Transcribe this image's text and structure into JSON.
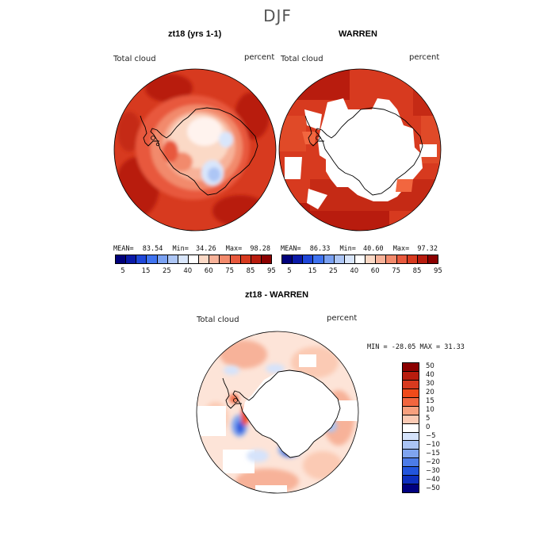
{
  "figure": {
    "season": "DJF"
  },
  "panels": {
    "model": {
      "title": "zt18 (yrs 1-1)",
      "variable": "Total cloud",
      "units": "percent",
      "stats": {
        "mean_label": "MEAN=",
        "mean": "83.54",
        "min_label": "Min=",
        "min": "34.26",
        "max_label": "Max=",
        "max": "98.28"
      }
    },
    "obs": {
      "title": "WARREN",
      "variable": "Total cloud",
      "units": "percent",
      "stats": {
        "mean_label": "MEAN=",
        "mean": "86.33",
        "min_label": "Min=",
        "min": "40.60",
        "max_label": "Max=",
        "max": "97.32"
      }
    },
    "diff": {
      "title": "zt18 - WARREN",
      "variable": "Total cloud",
      "units": "percent",
      "stats_text": "MIN = -28.05 MAX =  31.33"
    }
  },
  "colorbar_abs": {
    "tick_labels": [
      "5",
      "15",
      "25",
      "40",
      "60",
      "75",
      "85",
      "95"
    ],
    "colors": [
      "#00007a",
      "#0a1aa8",
      "#1f47d9",
      "#3f73f0",
      "#7aa1f2",
      "#adc6f5",
      "#d9e6fb",
      "#ffffff",
      "#fbd9c6",
      "#f7b299",
      "#f28a6c",
      "#e8593d",
      "#d73a1f",
      "#b81c0e",
      "#8b0000"
    ]
  },
  "colorbar_diff": {
    "value_labels": [
      "50",
      "40",
      "30",
      "20",
      "15",
      "10",
      "5",
      "0",
      "−5",
      "−10",
      "−15",
      "−20",
      "−30",
      "−40",
      "−50"
    ],
    "colors": [
      "#8b0000",
      "#b81c0e",
      "#d73a1f",
      "#f04a1a",
      "#f2663f",
      "#f7a07e",
      "#fbcab4",
      "#ffffff",
      "#d5e3fb",
      "#aac4f5",
      "#7fa4ef",
      "#4c7ce8",
      "#2255dd",
      "#0d2fbf",
      "#000080"
    ]
  },
  "palette": {
    "dark_red": "#8b0000",
    "red": "#d73a1f",
    "orange_red": "#e8593d",
    "salmon": "#f28a6c",
    "light_salmon": "#f7b299",
    "pale_peach": "#fbd9c6",
    "pale_blue": "#d9e6fb",
    "light_blue": "#adc6f5",
    "blue": "#3f73f0",
    "dark_blue": "#0d2fbf",
    "land_outline": "#000000"
  }
}
